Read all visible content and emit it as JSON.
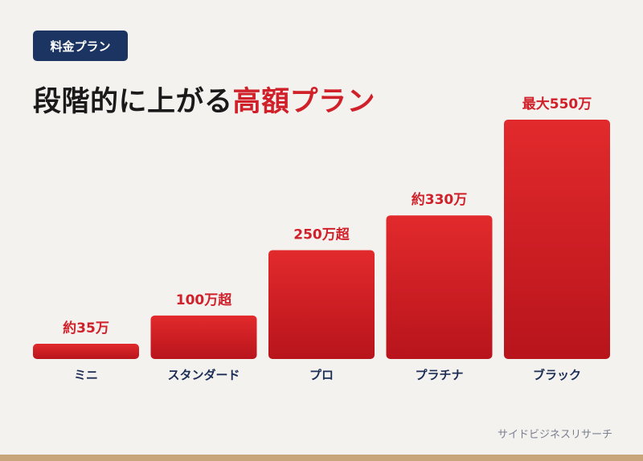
{
  "badge": "料金プラン",
  "headline": {
    "main": "段階的に上がる",
    "accent": "高額プラン"
  },
  "source": "サイドビジネスリサーチ",
  "colors": {
    "bar_top": "#e22a2c",
    "bar_bottom": "#b8141c",
    "value_text": "#d0202a",
    "category_text": "#1c2e55",
    "badge_bg": "#1c3461",
    "bottom_strip": "#c9a57b"
  },
  "chart_data": {
    "type": "bar",
    "categories": [
      "ミニ",
      "スタンダード",
      "プロ",
      "プラチナ",
      "ブラック"
    ],
    "values": [
      35,
      100,
      250,
      330,
      550
    ],
    "value_labels": [
      "約35万",
      "100万超",
      "250万超",
      "約330万",
      "最大550万"
    ],
    "unit": "万円",
    "ylim": [
      0,
      550
    ],
    "grid": false,
    "legend": "none"
  }
}
